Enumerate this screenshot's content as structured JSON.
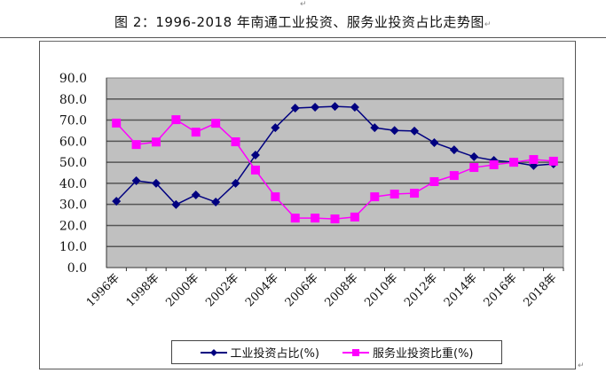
{
  "document": {
    "caption": "图 2：1996-2018 年南通工业投资、服务业投资占比走势图",
    "return_mark": "↵"
  },
  "legend": {
    "items": [
      {
        "label": "工业投资占比(%)",
        "color": "#000080",
        "marker": "diamond"
      },
      {
        "label": "服务业投资比重(%)",
        "color": "#FF00FF",
        "marker": "square"
      }
    ]
  },
  "chart_data": {
    "type": "line",
    "title": "图 2：1996-2018 年南通工业投资、服务业投资占比走势图",
    "xlabel": "",
    "ylabel": "",
    "ylim": [
      0,
      90
    ],
    "yticks": [
      "0.0",
      "10.0",
      "20.0",
      "30.0",
      "40.0",
      "50.0",
      "60.0",
      "70.0",
      "80.0",
      "90.0"
    ],
    "grid": true,
    "plot_background": "#C0C0C0",
    "legend_position": "bottom",
    "categories": [
      "1996年",
      "1997年",
      "1998年",
      "1999年",
      "2000年",
      "2001年",
      "2002年",
      "2003年",
      "2004年",
      "2005年",
      "2006年",
      "2007年",
      "2008年",
      "2009年",
      "2010年",
      "2011年",
      "2012年",
      "2013年",
      "2014年",
      "2015年",
      "2016年",
      "2017年",
      "2018年"
    ],
    "xtick_labels": [
      "1996年",
      "1998年",
      "2000年",
      "2002年",
      "2004年",
      "2006年",
      "2008年",
      "2010年",
      "2012年",
      "2014年",
      "2016年",
      "2018年"
    ],
    "series": [
      {
        "name": "工业投资占比(%)",
        "color": "#000080",
        "marker": "diamond",
        "values": [
          31.5,
          41.2,
          40.0,
          29.9,
          34.5,
          31.1,
          40.0,
          53.4,
          66.4,
          75.7,
          76.1,
          76.5,
          76.1,
          66.4,
          65.1,
          64.8,
          59.3,
          55.9,
          52.6,
          50.9,
          50.0,
          48.4,
          49.2
        ]
      },
      {
        "name": "服务业投资比重(%)",
        "color": "#FF00FF",
        "marker": "square",
        "values": [
          68.6,
          58.4,
          59.6,
          70.2,
          64.3,
          68.5,
          59.7,
          46.3,
          33.6,
          23.5,
          23.5,
          23.1,
          24.0,
          33.6,
          34.9,
          35.3,
          40.8,
          43.7,
          47.5,
          48.8,
          50.0,
          51.3,
          50.5
        ]
      }
    ]
  }
}
